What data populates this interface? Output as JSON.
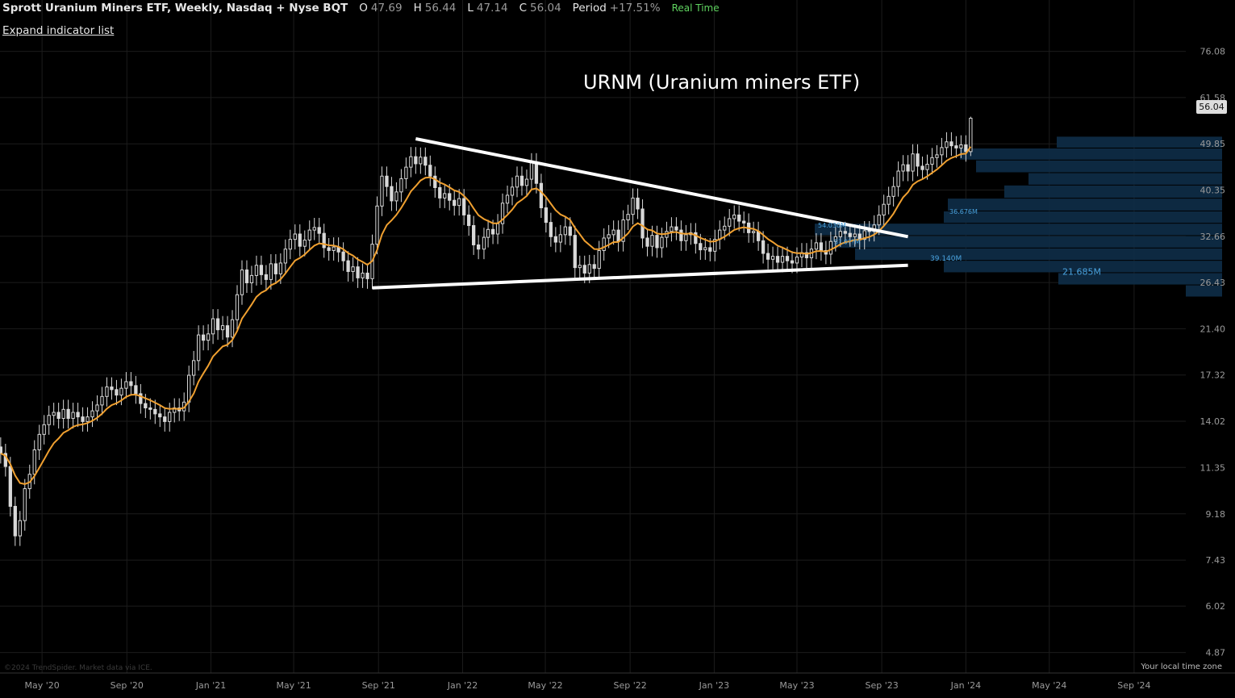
{
  "header": {
    "symbol_title": "Sprott Uranium Miners ETF, Weekly, Nasdaq + Nyse BQT",
    "open_label": "O",
    "open_value": "47.69",
    "high_label": "H",
    "high_value": "56.44",
    "low_label": "L",
    "low_value": "47.14",
    "close_label": "C",
    "close_value": "56.04",
    "period_label": "Period",
    "period_value": "+17.51%",
    "realtime_label": "Real Time"
  },
  "expand_indicator_label": "Expand indicator list",
  "annotation_text": "URNM (Uranium miners ETF)",
  "last_price_badge": "56.04",
  "copyright": "©2024 TrendSpider. Market data via ICE.",
  "timezone_label": "Your local time zone",
  "colors": {
    "background": "#000000",
    "candle": "#d8d8d8",
    "ema": "#f0a030",
    "trendline": "#ffffff",
    "volume_profile": "#0e2b44",
    "volume_label": "#4aa3df",
    "grid": "#1c1c1c"
  },
  "chart_data": {
    "type": "candlestick",
    "title": "Sprott Uranium Miners ETF, Weekly, Nasdaq + Nyse BQT",
    "y_scale": "log",
    "ylim": [
      4.5,
      80
    ],
    "y_ticks": [
      "76.08",
      "61.58",
      "49.85",
      "40.35",
      "32.66",
      "26.43",
      "21.40",
      "17.32",
      "14.02",
      "11.35",
      "9.18",
      "7.43",
      "6.02",
      "4.87"
    ],
    "x_ticks": [
      "May '20",
      "Sep '20",
      "Jan '21",
      "May '21",
      "Sep '21",
      "Jan '22",
      "May '22",
      "Sep '22",
      "Jan '23",
      "May '23",
      "Sep '23",
      "Jan '24",
      "May '24",
      "Sep '24"
    ],
    "xlim": [
      "2020-03-01",
      "2024-11-15"
    ],
    "weekly_closes": [
      [
        "2020-03-02",
        12.1
      ],
      [
        "2020-03-09",
        11.4
      ],
      [
        "2020-03-16",
        9.5
      ],
      [
        "2020-03-23",
        8.3
      ],
      [
        "2020-03-30",
        8.9
      ],
      [
        "2020-04-06",
        10.3
      ],
      [
        "2020-04-13",
        11.0
      ],
      [
        "2020-04-20",
        12.3
      ],
      [
        "2020-04-27",
        13.2
      ],
      [
        "2020-05-04",
        13.8
      ],
      [
        "2020-05-11",
        14.4
      ],
      [
        "2020-05-18",
        14.6
      ],
      [
        "2020-05-25",
        14.2
      ],
      [
        "2020-06-01",
        14.8
      ],
      [
        "2020-06-08",
        14.2
      ],
      [
        "2020-06-15",
        14.6
      ],
      [
        "2020-06-22",
        14.3
      ],
      [
        "2020-06-29",
        14.0
      ],
      [
        "2020-07-06",
        14.3
      ],
      [
        "2020-07-13",
        14.7
      ],
      [
        "2020-07-20",
        15.1
      ],
      [
        "2020-07-27",
        15.7
      ],
      [
        "2020-08-03",
        16.4
      ],
      [
        "2020-08-10",
        16.2
      ],
      [
        "2020-08-17",
        15.8
      ],
      [
        "2020-08-24",
        16.3
      ],
      [
        "2020-08-31",
        16.8
      ],
      [
        "2020-09-07",
        16.5
      ],
      [
        "2020-09-14",
        15.9
      ],
      [
        "2020-09-21",
        15.2
      ],
      [
        "2020-09-28",
        14.9
      ],
      [
        "2020-10-05",
        14.8
      ],
      [
        "2020-10-12",
        14.5
      ],
      [
        "2020-10-19",
        14.3
      ],
      [
        "2020-10-26",
        14.0
      ],
      [
        "2020-11-02",
        14.6
      ],
      [
        "2020-11-09",
        14.9
      ],
      [
        "2020-11-16",
        14.7
      ],
      [
        "2020-11-23",
        15.3
      ],
      [
        "2020-11-30",
        17.3
      ],
      [
        "2020-12-07",
        18.5
      ],
      [
        "2020-12-14",
        20.8
      ],
      [
        "2020-12-21",
        20.3
      ],
      [
        "2020-12-28",
        20.9
      ],
      [
        "2021-01-04",
        22.4
      ],
      [
        "2021-01-11",
        21.3
      ],
      [
        "2021-01-18",
        21.7
      ],
      [
        "2021-01-25",
        20.6
      ],
      [
        "2021-02-01",
        22.3
      ],
      [
        "2021-02-08",
        25.0
      ],
      [
        "2021-02-15",
        28.0
      ],
      [
        "2021-02-22",
        26.4
      ],
      [
        "2021-03-01",
        27.3
      ],
      [
        "2021-03-08",
        28.6
      ],
      [
        "2021-03-15",
        27.4
      ],
      [
        "2021-03-22",
        26.8
      ],
      [
        "2021-03-29",
        28.8
      ],
      [
        "2021-04-05",
        27.5
      ],
      [
        "2021-04-12",
        28.9
      ],
      [
        "2021-04-19",
        30.8
      ],
      [
        "2021-04-26",
        32.2
      ],
      [
        "2021-05-03",
        33.0
      ],
      [
        "2021-05-10",
        31.2
      ],
      [
        "2021-05-17",
        32.1
      ],
      [
        "2021-05-24",
        33.6
      ],
      [
        "2021-05-31",
        34.0
      ],
      [
        "2021-06-07",
        33.1
      ],
      [
        "2021-06-14",
        31.0
      ],
      [
        "2021-06-21",
        30.6
      ],
      [
        "2021-06-28",
        31.1
      ],
      [
        "2021-07-05",
        30.4
      ],
      [
        "2021-07-12",
        29.2
      ],
      [
        "2021-07-19",
        27.8
      ],
      [
        "2021-07-26",
        28.4
      ],
      [
        "2021-08-02",
        27.0
      ],
      [
        "2021-08-09",
        27.6
      ],
      [
        "2021-08-16",
        26.9
      ],
      [
        "2021-08-23",
        31.5
      ],
      [
        "2021-08-30",
        37.5
      ],
      [
        "2021-09-06",
        43.0
      ],
      [
        "2021-09-13",
        41.0
      ],
      [
        "2021-09-20",
        38.4
      ],
      [
        "2021-09-27",
        40.0
      ],
      [
        "2021-10-04",
        42.5
      ],
      [
        "2021-10-11",
        44.8
      ],
      [
        "2021-10-18",
        47.0
      ],
      [
        "2021-10-25",
        45.5
      ],
      [
        "2021-11-01",
        46.9
      ],
      [
        "2021-11-08",
        45.2
      ],
      [
        "2021-11-15",
        43.0
      ],
      [
        "2021-11-22",
        40.8
      ],
      [
        "2021-11-29",
        38.9
      ],
      [
        "2021-12-06",
        39.7
      ],
      [
        "2021-12-13",
        38.5
      ],
      [
        "2021-12-20",
        37.6
      ],
      [
        "2021-12-27",
        38.8
      ],
      [
        "2022-01-03",
        36.0
      ],
      [
        "2022-01-10",
        34.3
      ],
      [
        "2022-01-17",
        31.4
      ],
      [
        "2022-01-24",
        30.8
      ],
      [
        "2022-02-01",
        32.5
      ],
      [
        "2022-02-07",
        33.7
      ],
      [
        "2022-02-14",
        33.0
      ],
      [
        "2022-02-21",
        34.6
      ],
      [
        "2022-02-28",
        38.0
      ],
      [
        "2022-03-07",
        39.4
      ],
      [
        "2022-03-14",
        40.9
      ],
      [
        "2022-03-21",
        43.0
      ],
      [
        "2022-03-28",
        41.2
      ],
      [
        "2022-04-04",
        42.4
      ],
      [
        "2022-04-11",
        45.7
      ],
      [
        "2022-04-18",
        41.6
      ],
      [
        "2022-04-25",
        37.2
      ],
      [
        "2022-05-02",
        34.8
      ],
      [
        "2022-05-09",
        32.6
      ],
      [
        "2022-05-16",
        31.8
      ],
      [
        "2022-05-23",
        32.9
      ],
      [
        "2022-05-30",
        34.1
      ],
      [
        "2022-06-06",
        32.8
      ],
      [
        "2022-06-13",
        28.3
      ],
      [
        "2022-06-20",
        28.6
      ],
      [
        "2022-06-27",
        27.6
      ],
      [
        "2022-07-04",
        28.7
      ],
      [
        "2022-07-11",
        28.2
      ],
      [
        "2022-07-18",
        30.6
      ],
      [
        "2022-07-25",
        32.4
      ],
      [
        "2022-08-01",
        32.9
      ],
      [
        "2022-08-08",
        33.6
      ],
      [
        "2022-08-15",
        31.9
      ],
      [
        "2022-08-22",
        35.2
      ],
      [
        "2022-08-29",
        36.1
      ],
      [
        "2022-09-05",
        38.9
      ],
      [
        "2022-09-12",
        37.0
      ],
      [
        "2022-09-19",
        32.4
      ],
      [
        "2022-09-26",
        31.2
      ],
      [
        "2022-10-03",
        32.8
      ],
      [
        "2022-10-10",
        31.0
      ],
      [
        "2022-10-17",
        32.5
      ],
      [
        "2022-10-24",
        33.4
      ],
      [
        "2022-10-31",
        34.1
      ],
      [
        "2022-11-07",
        33.6
      ],
      [
        "2022-11-14",
        32.0
      ],
      [
        "2022-11-21",
        32.9
      ],
      [
        "2022-11-28",
        33.2
      ],
      [
        "2022-12-05",
        31.6
      ],
      [
        "2022-12-12",
        30.7
      ],
      [
        "2022-12-19",
        31.0
      ],
      [
        "2022-12-26",
        30.5
      ],
      [
        "2023-01-02",
        32.2
      ],
      [
        "2023-01-09",
        33.6
      ],
      [
        "2023-01-16",
        34.2
      ],
      [
        "2023-01-23",
        35.4
      ],
      [
        "2023-01-30",
        36.0
      ],
      [
        "2023-02-06",
        35.0
      ],
      [
        "2023-02-13",
        34.7
      ],
      [
        "2023-02-20",
        33.2
      ],
      [
        "2023-02-27",
        33.4
      ],
      [
        "2023-03-06",
        32.0
      ],
      [
        "2023-03-13",
        30.2
      ],
      [
        "2023-03-20",
        29.4
      ],
      [
        "2023-03-27",
        29.8
      ],
      [
        "2023-04-03",
        29.0
      ],
      [
        "2023-04-10",
        29.8
      ],
      [
        "2023-04-17",
        29.2
      ],
      [
        "2023-04-24",
        28.9
      ],
      [
        "2023-05-01",
        29.7
      ],
      [
        "2023-05-08",
        30.3
      ],
      [
        "2023-05-15",
        29.6
      ],
      [
        "2023-05-22",
        30.8
      ],
      [
        "2023-05-29",
        31.7
      ],
      [
        "2023-06-05",
        30.6
      ],
      [
        "2023-06-12",
        30.1
      ],
      [
        "2023-06-19",
        31.9
      ],
      [
        "2023-06-26",
        32.6
      ],
      [
        "2023-07-03",
        33.4
      ],
      [
        "2023-07-10",
        33.1
      ],
      [
        "2023-07-17",
        32.6
      ],
      [
        "2023-07-24",
        33.0
      ],
      [
        "2023-07-31",
        32.2
      ],
      [
        "2023-08-07",
        33.5
      ],
      [
        "2023-08-14",
        33.4
      ],
      [
        "2023-08-21",
        34.4
      ],
      [
        "2023-08-28",
        36.0
      ],
      [
        "2023-09-04",
        37.8
      ],
      [
        "2023-09-11",
        39.2
      ],
      [
        "2023-09-18",
        41.0
      ],
      [
        "2023-09-25",
        44.0
      ],
      [
        "2023-10-02",
        45.3
      ],
      [
        "2023-10-09",
        44.0
      ],
      [
        "2023-10-16",
        47.6
      ],
      [
        "2023-10-23",
        45.0
      ],
      [
        "2023-10-30",
        44.3
      ],
      [
        "2023-11-06",
        45.4
      ],
      [
        "2023-11-13",
        46.8
      ],
      [
        "2023-11-20",
        47.4
      ],
      [
        "2023-11-27",
        49.0
      ],
      [
        "2023-12-04",
        50.3
      ],
      [
        "2023-12-11",
        49.4
      ],
      [
        "2023-12-18",
        48.9
      ],
      [
        "2023-12-25",
        49.6
      ],
      [
        "2024-01-01",
        48.1
      ],
      [
        "2024-01-08",
        56.04
      ]
    ],
    "series": [
      {
        "name": "",
        "type": "ema",
        "length": 10
      }
    ],
    "trendlines": [
      {
        "from": [
          "2021-10-25",
          51.0
        ],
        "to": [
          "2023-10-09",
          32.6
        ]
      },
      {
        "from": [
          "2021-08-23",
          25.8
        ],
        "to": [
          "2023-10-09",
          28.6
        ]
      }
    ],
    "volume_profile": {
      "labels": [
        "54.030M",
        "36.676M",
        "39.140M",
        "21.685M"
      ],
      "partial_label": "5?.0??M"
    }
  }
}
